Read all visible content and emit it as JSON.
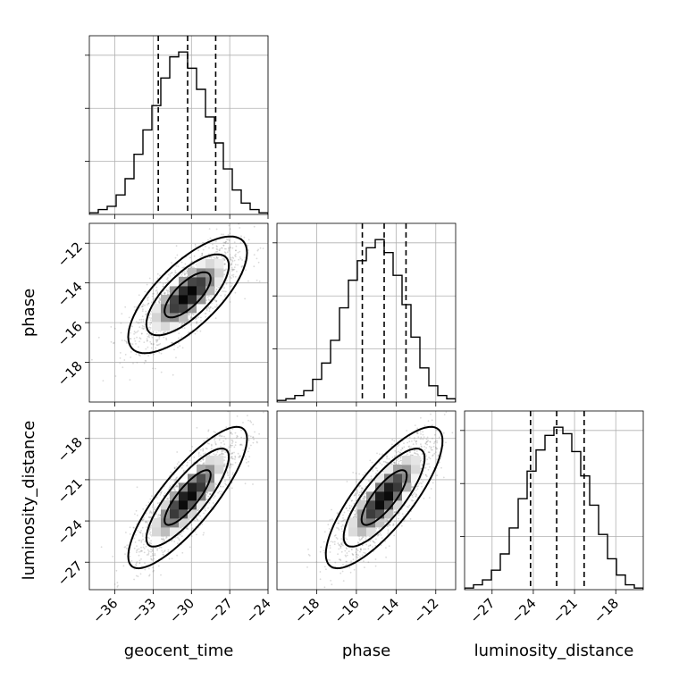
{
  "chart_data": {
    "type": "corner",
    "parameters": [
      "geocent_time",
      "phase",
      "luminosity_distance"
    ],
    "axis_labels": [
      "geocent_time",
      "phase",
      "luminosity_distance"
    ],
    "grid": true,
    "ranges": {
      "geocent_time": [
        -38,
        -24
      ],
      "phase": [
        -20,
        -11
      ],
      "luminosity_distance": [
        -29,
        -16
      ]
    },
    "ticks": {
      "geocent_time": [
        -36,
        -33,
        -30,
        -27,
        -24
      ],
      "phase": [
        -18,
        -16,
        -14,
        -12
      ],
      "luminosity_distance": [
        -27,
        -24,
        -21,
        -18
      ]
    },
    "tick_labels": {
      "geocent_time": [
        "−36",
        "−33",
        "−30",
        "−27",
        "−24"
      ],
      "phase": [
        "−18",
        "−16",
        "−14",
        "−12"
      ],
      "luminosity_distance": [
        "−27",
        "−24",
        "−21",
        "−18"
      ]
    },
    "histograms": {
      "geocent_time": {
        "bin_edges": [
          -38,
          -37.3,
          -36.6,
          -35.9,
          -35.2,
          -34.5,
          -33.8,
          -33.1,
          -32.4,
          -31.7,
          -31,
          -30.3,
          -29.6,
          -28.9,
          -28.2,
          -27.5,
          -26.8,
          -26.1,
          -25.4,
          -24.7,
          -24
        ],
        "counts": [
          1,
          3,
          5,
          12,
          22,
          37,
          52,
          67,
          84,
          97,
          100,
          90,
          77,
          60,
          44,
          28,
          15,
          7,
          3,
          1
        ]
      },
      "phase": {
        "bin_edges": [
          -20,
          -19.55,
          -19.1,
          -18.65,
          -18.2,
          -17.75,
          -17.3,
          -16.85,
          -16.4,
          -15.95,
          -15.5,
          -15.05,
          -14.6,
          -14.15,
          -13.7,
          -13.25,
          -12.8,
          -12.35,
          -11.9,
          -11.45,
          -11
        ],
        "counts": [
          1,
          2,
          4,
          7,
          14,
          24,
          38,
          58,
          75,
          87,
          95,
          100,
          92,
          78,
          60,
          40,
          21,
          10,
          4,
          2
        ]
      },
      "luminosity_distance": {
        "bin_edges": [
          -29,
          -28.35,
          -27.7,
          -27.05,
          -26.4,
          -25.75,
          -25.1,
          -24.45,
          -23.8,
          -23.15,
          -22.5,
          -21.85,
          -21.2,
          -20.55,
          -19.9,
          -19.25,
          -18.6,
          -17.95,
          -17.3,
          -16.65,
          -16
        ],
        "counts": [
          1,
          3,
          6,
          12,
          22,
          38,
          56,
          73,
          86,
          95,
          100,
          96,
          85,
          70,
          52,
          34,
          19,
          9,
          3,
          1
        ]
      }
    },
    "quantiles": {
      "geocent_time": [
        -32.6,
        -30.3,
        -28.1
      ],
      "phase": [
        -15.7,
        -14.6,
        -13.5
      ],
      "luminosity_distance": [
        -24.2,
        -22.3,
        -20.3
      ]
    },
    "pair_stats": {
      "phase_vs_geocent_time": {
        "mean_x": -30.3,
        "mean_y": -14.6,
        "std_x": 1.9,
        "std_y": 1.2,
        "corr": 0.72
      },
      "luminosity_distance_vs_geocent_time": {
        "mean_x": -30.3,
        "mean_y": -22.3,
        "std_x": 1.9,
        "std_y": 2.1,
        "corr": 0.83
      },
      "luminosity_distance_vs_phase": {
        "mean_x": -14.6,
        "mean_y": -22.3,
        "std_x": 1.2,
        "std_y": 2.1,
        "corr": 0.8
      }
    }
  }
}
